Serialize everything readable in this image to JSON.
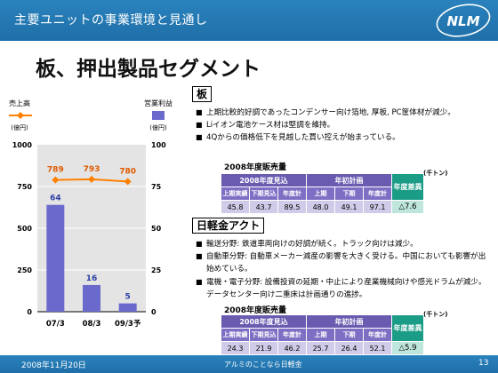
{
  "header": {
    "title": "主要ユニットの事業環境と見通し",
    "logo_text": "NLM"
  },
  "slide_title": "板、押出製品セグメント",
  "chart_data": {
    "type": "bar",
    "categories": [
      "07/3",
      "08/3",
      "09/3予"
    ],
    "bar_series": {
      "name": "営業利益",
      "unit": "(億円)",
      "values": [
        64,
        16,
        5
      ],
      "ylim": [
        0,
        100
      ],
      "ticks": [
        0,
        25,
        50,
        75,
        100
      ]
    },
    "line_series": {
      "name": "売上高",
      "unit": "(億円)",
      "values": [
        789,
        793,
        780
      ],
      "ylim": [
        0,
        1000
      ],
      "ticks": [
        0,
        250,
        500,
        750,
        1000
      ]
    },
    "colors": {
      "bar": "#6a6acd",
      "line": "#ff7f00",
      "plot_bg": "#e4e4e4"
    }
  },
  "sections": [
    {
      "name": "板",
      "bullets": [
        "上期比較的好調であったコンデンサー向け箔地, 厚板, PC筐体材が減少。",
        "Liイオン電池ケース材は堅調を維持。",
        "4Qからの価格低下を見越した買い控えが始まっている。"
      ],
      "table": {
        "title": "2008年度販売量",
        "unit": "(千トン)",
        "group1": "2008年度見込",
        "group2": "年初計画",
        "diff_header": "年度差異",
        "subheaders": [
          "上期実績",
          "下期見込",
          "年度計",
          "上期",
          "下期",
          "年度計"
        ],
        "values": [
          "45.8",
          "43.7",
          "89.5",
          "48.0",
          "49.1",
          "97.1"
        ],
        "diff": "△7.6"
      }
    },
    {
      "name": "日軽金アクト",
      "bullets": [
        "輸送分野:  鉄道車両向けの好調が続く。トラック向けは減少。",
        "自動車分野:  自動車メーカー減産の影響を大きく受ける。中国においても影響が出始めている。",
        "電機・電子分野:  設備投資の延期・中止により産業機械向けや感光ドラムが減少。 データセンター向け二重床は計画通りの進捗。"
      ],
      "table": {
        "title": "2008年度販売量",
        "unit": "(千トン)",
        "group1": "2008年度見込",
        "group2": "年初計画",
        "diff_header": "年度差異",
        "subheaders": [
          "上期実績",
          "下期見込",
          "年度計",
          "上期",
          "下期",
          "年度計"
        ],
        "values": [
          "24.3",
          "21.9",
          "46.2",
          "25.7",
          "26.4",
          "52.1"
        ],
        "diff": "△5.9"
      }
    }
  ],
  "footer": {
    "date": "2008年11月20日",
    "company": "アルミのことなら日軽金",
    "page": "13"
  }
}
